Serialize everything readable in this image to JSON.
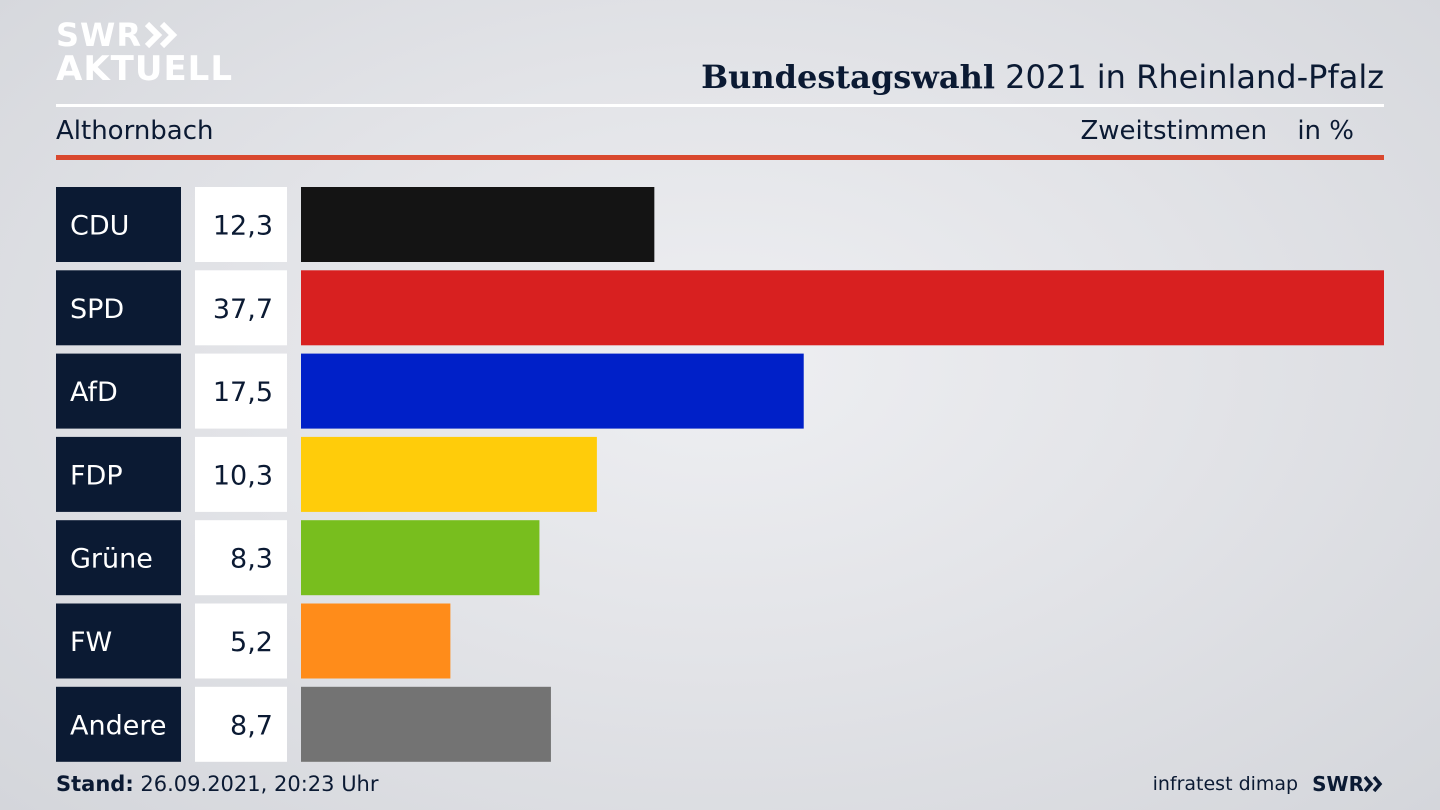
{
  "brand": {
    "line1": "SWR",
    "line2": "AKTUELL"
  },
  "header": {
    "title_bold": "Bundestagswahl",
    "title_rest": "2021 in Rheinland-Pfalz",
    "subtitle": "Althornbach",
    "measure": "Zweitstimmen",
    "unit": "in %"
  },
  "chart_data": {
    "type": "bar",
    "orientation": "horizontal",
    "categories": [
      "CDU",
      "SPD",
      "AfD",
      "FDP",
      "Grüne",
      "FW",
      "Andere"
    ],
    "values": [
      12.3,
      37.7,
      17.5,
      10.3,
      8.3,
      5.2,
      8.7
    ],
    "value_labels": [
      "12,3",
      "37,7",
      "17,5",
      "10,3",
      "8,3",
      "5,2",
      "8,7"
    ],
    "colors": [
      "#141414",
      "#d82020",
      "#0020c8",
      "#ffcc0a",
      "#78be1e",
      "#ff8c1a",
      "#737373"
    ],
    "xlim": [
      0,
      37.7
    ],
    "grid": false
  },
  "footer": {
    "stand_label": "Stand:",
    "stand_value": "26.09.2021, 20:23 Uhr",
    "source": "infratest dimap",
    "brand": "SWR"
  }
}
